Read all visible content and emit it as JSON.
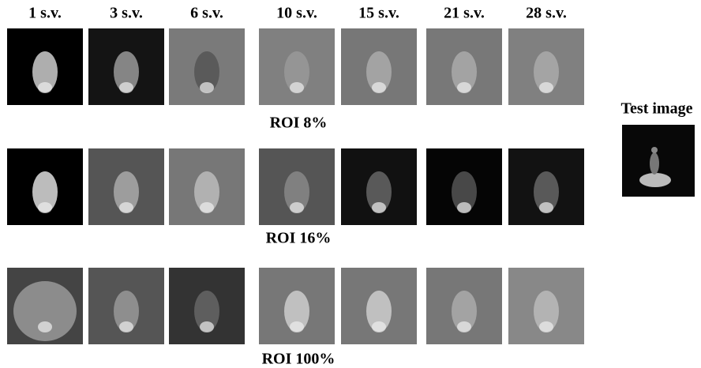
{
  "columns": [
    "1 s.v.",
    "3 s.v.",
    "6 s.v.",
    "10 s.v.",
    "15 s.v.",
    "21 s.v.",
    "28 s.v."
  ],
  "rows": [
    {
      "label": "ROI 8%"
    },
    {
      "label": "ROI 16%"
    },
    {
      "label": "ROI 100%"
    }
  ],
  "test_image": {
    "label": "Test image"
  }
}
